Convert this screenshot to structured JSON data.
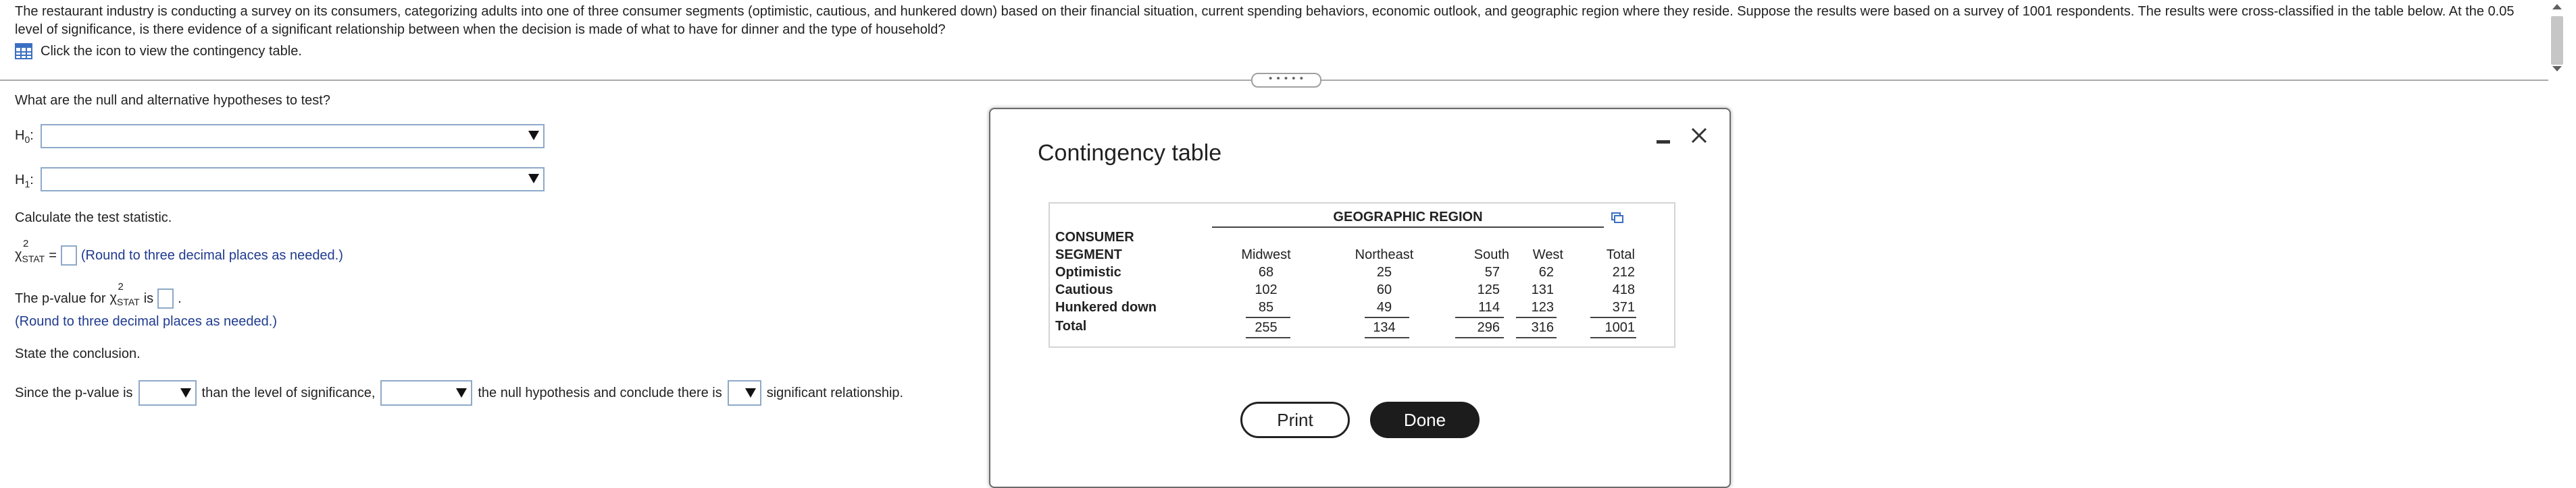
{
  "problem": {
    "prompt": "The restaurant industry is conducting a survey on its consumers, categorizing adults into one of three consumer segments (optimistic, cautious, and hunkered down) based on their financial situation, current spending behaviors, economic outlook, and geographic region where they reside. Suppose the results were based on a survey of 1001 respondents. The results were cross-classified in the table below. At the 0.05 level of significance, is there evidence of a significant relationship between when the decision is made of what to have for dinner and the type of household?",
    "table_link_text": "Click the icon to view the contingency table."
  },
  "splitter_text": "• • • • •",
  "questions": {
    "hypotheses_prompt": "What are the null and alternative hypotheses to test?",
    "h0_label": "H",
    "h0_sub": "0",
    "h1_label": "H",
    "h1_sub": "1",
    "h_colon": ":",
    "calc_prompt": "Calculate the test statistic.",
    "chi_symbol": "χ",
    "chi_sup": "2",
    "stat_sub": "STAT",
    "equals": "=",
    "round_hint": "(Round to three decimal places as needed.)",
    "pvalue_prefix": "The p-value for",
    "pvalue_is": "is",
    "period": ".",
    "conclusion_prompt": "State the conclusion.",
    "since_text": "Since the p-value is",
    "than_text": "than the level of significance,",
    "null_text": "the null hypothesis and conclude there is",
    "sig_text": "significant relationship."
  },
  "dialog": {
    "title": "Contingency table",
    "print_label": "Print",
    "done_label": "Done",
    "table": {
      "region_header": "GEOGRAPHIC REGION",
      "segment_header_1": "CONSUMER",
      "segment_header_2": "SEGMENT",
      "columns": [
        "Midwest",
        "Northeast",
        "South",
        "West",
        "Total"
      ],
      "rows": [
        {
          "label": "Optimistic",
          "values": [
            "68",
            "25",
            "57",
            "62",
            "212"
          ]
        },
        {
          "label": "Cautious",
          "values": [
            "102",
            "60",
            "125",
            "131",
            "418"
          ]
        },
        {
          "label": "Hunkered down",
          "values": [
            "85",
            "49",
            "114",
            "123",
            "371"
          ]
        },
        {
          "label": "Total",
          "values": [
            "255",
            "134",
            "296",
            "316",
            "1001"
          ]
        }
      ]
    }
  },
  "colors": {
    "hint_blue": "#1f3b8f",
    "input_border": "#8ea9c9",
    "done_bg": "#1c1c1c"
  }
}
